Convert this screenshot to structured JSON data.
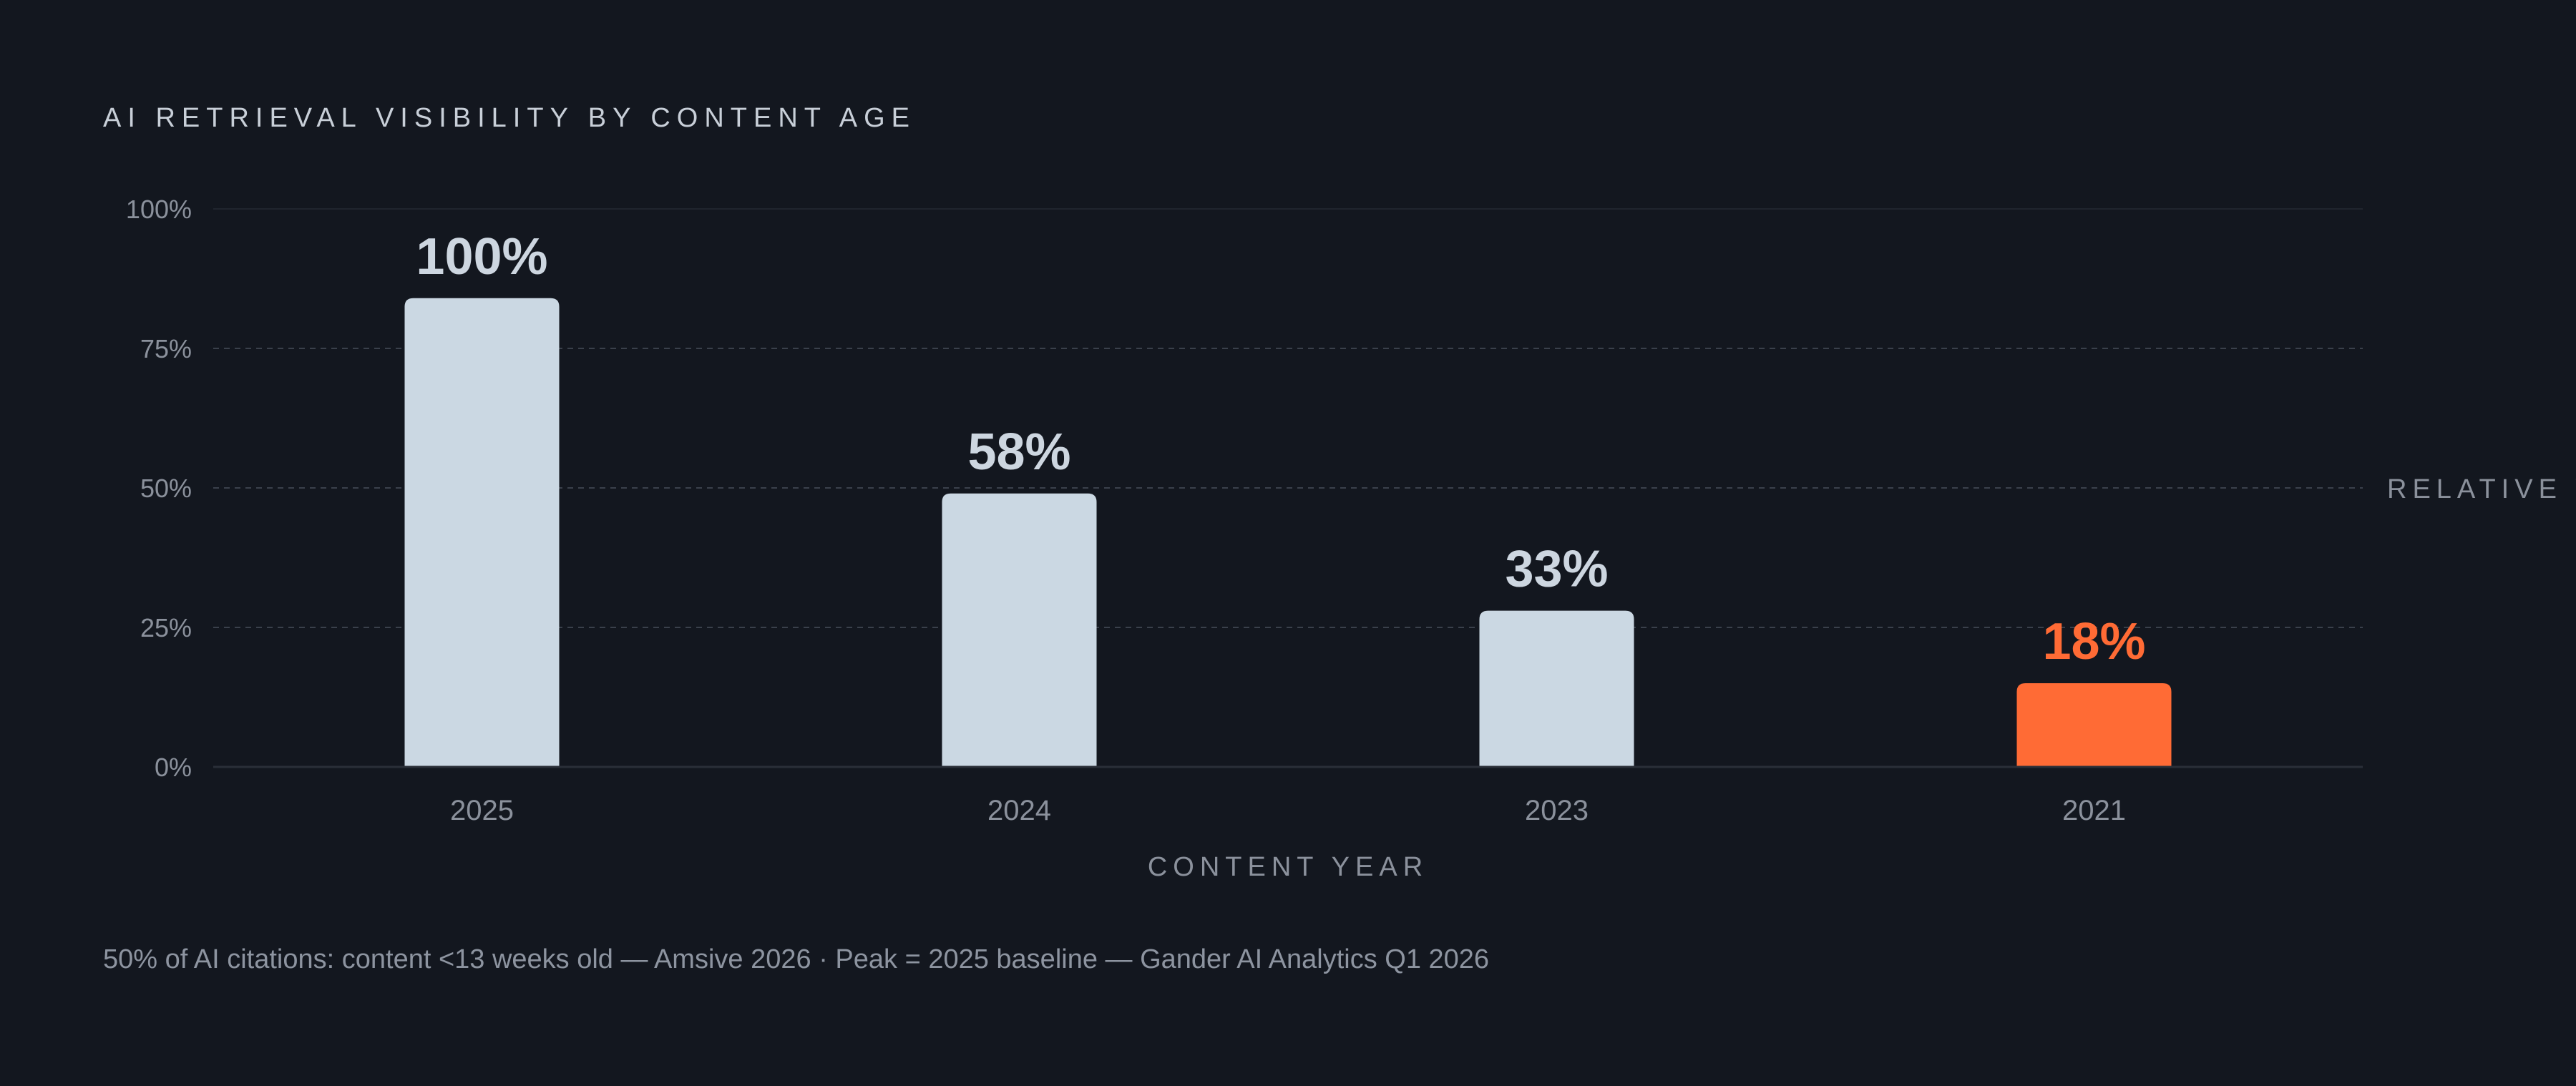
{
  "title": "AI RETRIEVAL VISIBILITY BY CONTENT AGE",
  "caption": "50% of AI citations: content <13 weeks old — Amsive 2026  ·  Peak = 2025 baseline — Gander AI Analytics Q1 2026",
  "colors": {
    "background": "#13171f",
    "bar": "#cbd8e3",
    "highlight": "#ff6b35",
    "tick_text": "#8b919c",
    "value_text": "#cdd6e0",
    "grid": "#3a404b",
    "axis": "#2a2f38"
  },
  "chart_data": {
    "type": "bar",
    "title": "AI RETRIEVAL VISIBILITY BY CONTENT AGE",
    "xlabel": "CONTENT YEAR",
    "ylabel": "RELATIVE V",
    "categories": [
      "2025",
      "2024",
      "2023",
      "2021"
    ],
    "values": [
      84,
      49,
      28,
      15
    ],
    "data_labels": [
      "100%",
      "58%",
      "33%",
      "18%"
    ],
    "highlight_index": 3,
    "ylim": [
      0,
      100
    ],
    "yticks": [
      0,
      25,
      50,
      75,
      100
    ],
    "ytick_labels": [
      "0%",
      "25%",
      "50%",
      "75%",
      "100%"
    ],
    "grid": true,
    "legend": "none"
  }
}
